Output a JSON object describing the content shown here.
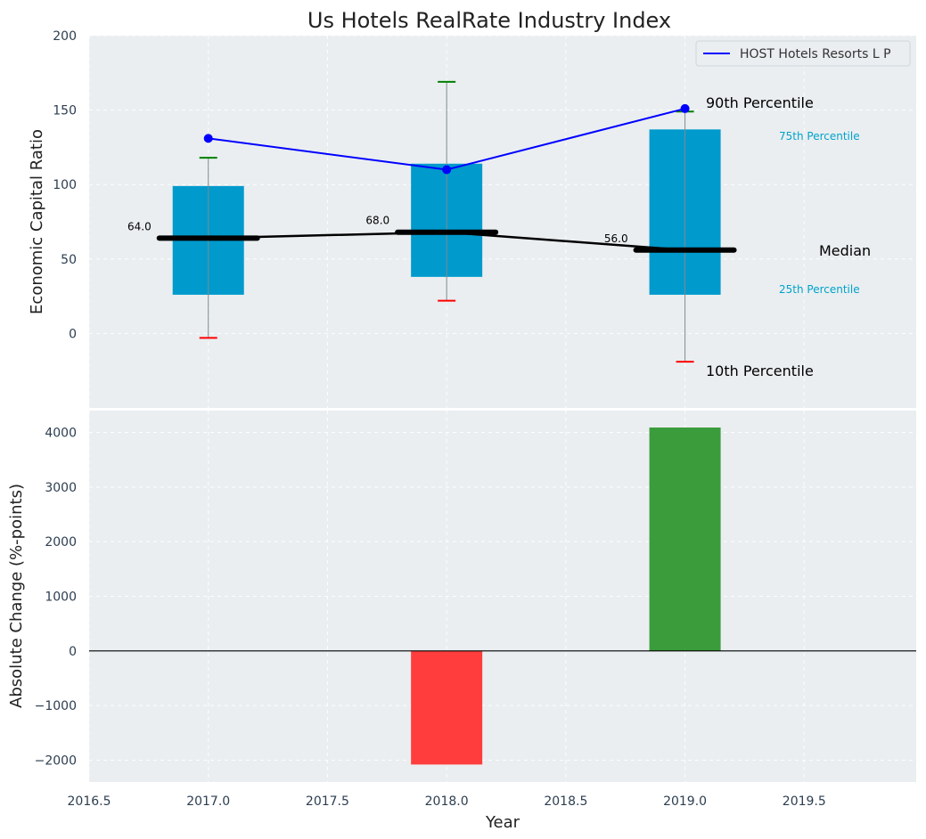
{
  "chart_data": {
    "type": "boxplot-with-line-and-bar",
    "title": "Us Hotels RealRate Industry Index",
    "xlabel": "Year",
    "x_ticks": [
      "2016.5",
      "2017.0",
      "2017.5",
      "2018.0",
      "2018.5",
      "2019.0",
      "2019.5"
    ],
    "xlim": [
      2016.5,
      2019.97
    ],
    "top_panel": {
      "ylabel": "Economic Capital Ratio",
      "ylim": [
        -50,
        200
      ],
      "y_ticks": [
        "0",
        "50",
        "100",
        "150",
        "200"
      ],
      "grid": true,
      "legend": {
        "placement": "top-right",
        "entries": [
          "HOST Hotels Resorts L P"
        ]
      },
      "percentile_boxes": [
        {
          "year": 2017,
          "p10": -3,
          "p25": 26,
          "median": 64,
          "p75": 99,
          "p90": 118,
          "median_label": "64.0"
        },
        {
          "year": 2018,
          "p10": 22,
          "p25": 38,
          "median": 68,
          "p75": 114,
          "p90": 169,
          "median_label": "68.0"
        },
        {
          "year": 2019,
          "p10": -19,
          "p25": 26,
          "median": 56,
          "p75": 137,
          "p90": 149,
          "median_label": "56.0"
        }
      ],
      "company_series": {
        "name": "HOST Hotels Resorts L P",
        "x": [
          2017,
          2018,
          2019
        ],
        "y": [
          131,
          110,
          151
        ]
      },
      "annotations": {
        "p90": "90th Percentile",
        "p75": "75th Percentile",
        "median": "Median",
        "p25": "25th Percentile",
        "p10": "10th Percentile"
      }
    },
    "bottom_panel": {
      "type": "bar",
      "ylabel": "Absolute Change (%-points)",
      "ylim": [
        -2400,
        4400
      ],
      "y_ticks": [
        "4000",
        "3000",
        "2000",
        "1000",
        "0",
        "−1000",
        "−2000"
      ],
      "grid": true,
      "x": [
        2018,
        2019
      ],
      "values": [
        -2080,
        4090
      ]
    },
    "colors": {
      "background": "#eaeef0",
      "box": "#009acd",
      "company_line": "#0000ff",
      "median": "#000000",
      "whisker_top": "#008000",
      "whisker_bottom": "#ff0000",
      "bar_negative": "#ff3d3d",
      "bar_positive": "#3b9c3b",
      "annotation_minor": "#00a3cc",
      "tick_text": "#2c3e50"
    }
  }
}
